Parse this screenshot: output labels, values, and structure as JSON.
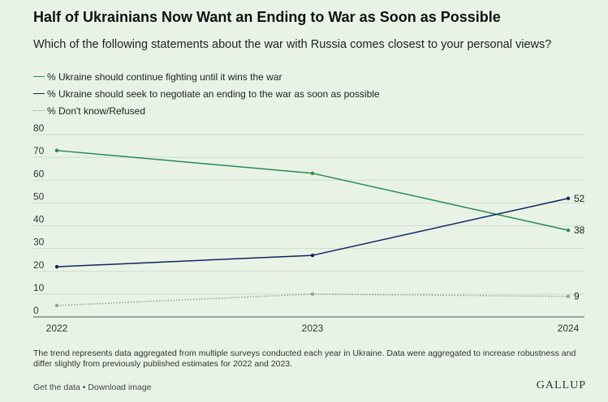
{
  "header": {
    "title": "Half of Ukrainians Now Want an Ending to War as Soon as Possible",
    "subtitle": "Which of the following statements about the war with Russia comes closest to your personal views?"
  },
  "legend": [
    {
      "label": "% Ukraine should continue fighting until it wins the war",
      "color": "#2a8a4a",
      "style": "solid"
    },
    {
      "label": "% Ukraine should seek to negotiate an ending to the war as soon as possible",
      "color": "#0f2460",
      "style": "solid"
    },
    {
      "label": "% Don't know/Refused",
      "color": "#9a9a9a",
      "style": "dotted"
    }
  ],
  "chart_data": {
    "type": "line",
    "x": [
      "2022",
      "2023",
      "2024"
    ],
    "ylim": [
      0,
      80
    ],
    "yticks": [
      "0",
      "10",
      "20",
      "30",
      "40",
      "50",
      "60",
      "70",
      "80"
    ],
    "grid": true,
    "legend_position": "top-left",
    "series": [
      {
        "name": "% Ukraine should continue fighting until it wins the war",
        "values": [
          73,
          63,
          38
        ],
        "color": "#2a8a4a",
        "end_label": "38"
      },
      {
        "name": "% Ukraine should seek to negotiate an ending to the war as soon as possible",
        "values": [
          22,
          27,
          52
        ],
        "color": "#0f2460",
        "end_label": "52"
      },
      {
        "name": "% Don't know/Refused",
        "values": [
          5,
          10,
          9
        ],
        "color": "#9a9a9a",
        "dotted": true,
        "end_label": "9"
      }
    ]
  },
  "footer": {
    "note": "The trend represents data aggregated from multiple surveys conducted each year in Ukraine. Data were aggregated to increase robustness and differ slightly from previously published estimates for 2022 and 2023.",
    "get_data": "Get the data",
    "separator": "•",
    "download": "Download image",
    "logo": "GALLUP"
  }
}
